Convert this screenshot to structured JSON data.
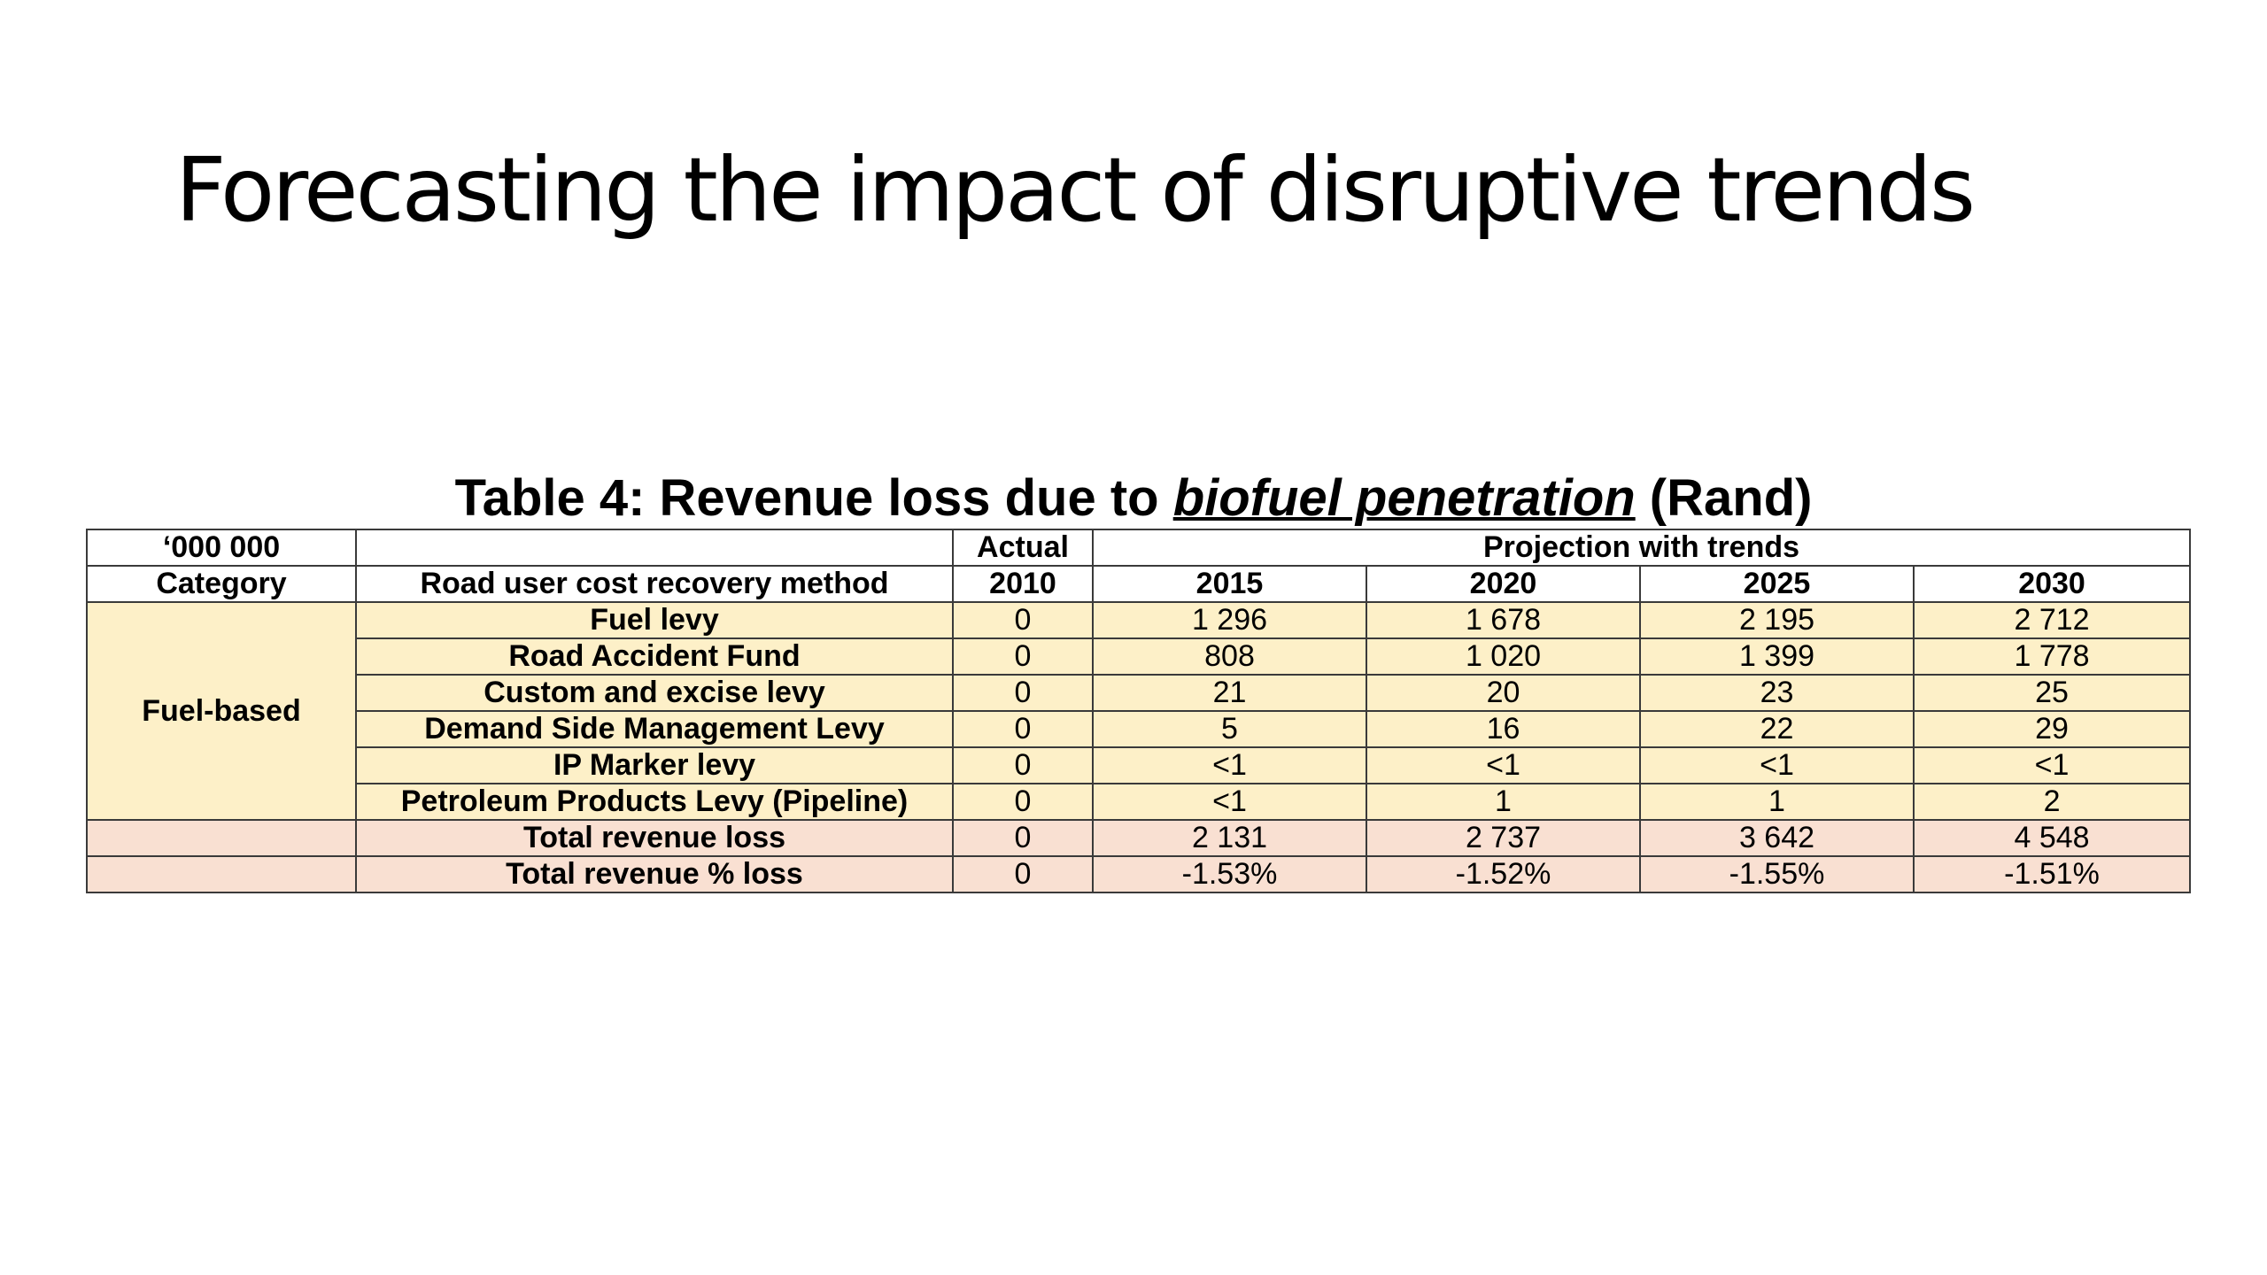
{
  "slide": {
    "title": "Forecasting the impact of disruptive trends"
  },
  "table": {
    "caption_prefix": "Table 4: Revenue loss due to ",
    "caption_emphasis": "biofuel penetration",
    "caption_suffix": " (Rand)",
    "header_row1": {
      "unit": "‘000 000",
      "actual": "Actual",
      "projection": "Projection with trends"
    },
    "header_row2": {
      "category": "Category",
      "method": "Road user cost recovery method",
      "years": [
        "2010",
        "2015",
        "2020",
        "2025",
        "2030"
      ]
    },
    "category_label": "Fuel-based",
    "rows": [
      {
        "method": "Fuel levy",
        "values": [
          "0",
          "1 296",
          "1 678",
          "2 195",
          "2 712"
        ]
      },
      {
        "method": "Road Accident Fund",
        "values": [
          "0",
          "808",
          "1 020",
          "1 399",
          "1 778"
        ]
      },
      {
        "method": "Custom and excise levy",
        "values": [
          "0",
          "21",
          "20",
          "23",
          "25"
        ]
      },
      {
        "method": "Demand Side Management Levy",
        "values": [
          "0",
          "5",
          "16",
          "22",
          "29"
        ]
      },
      {
        "method": "IP Marker levy",
        "values": [
          "0",
          "<1",
          "<1",
          "<1",
          "<1"
        ]
      },
      {
        "method": "Petroleum Products Levy (Pipeline)",
        "values": [
          "0",
          "<1",
          "1",
          "1",
          "2"
        ]
      }
    ],
    "totals": [
      {
        "method": "Total revenue loss",
        "values": [
          "0",
          "2 131",
          "2 737",
          "3 642",
          "4 548"
        ]
      },
      {
        "method": "Total revenue % loss",
        "values": [
          "0",
          "-1.53%",
          "-1.52%",
          "-1.55%",
          "-1.51%"
        ]
      }
    ]
  },
  "colors": {
    "fuel_row_bg": "#fdf0c8",
    "total_row_bg": "#f9e0d2",
    "border": "#3a3a3a"
  }
}
